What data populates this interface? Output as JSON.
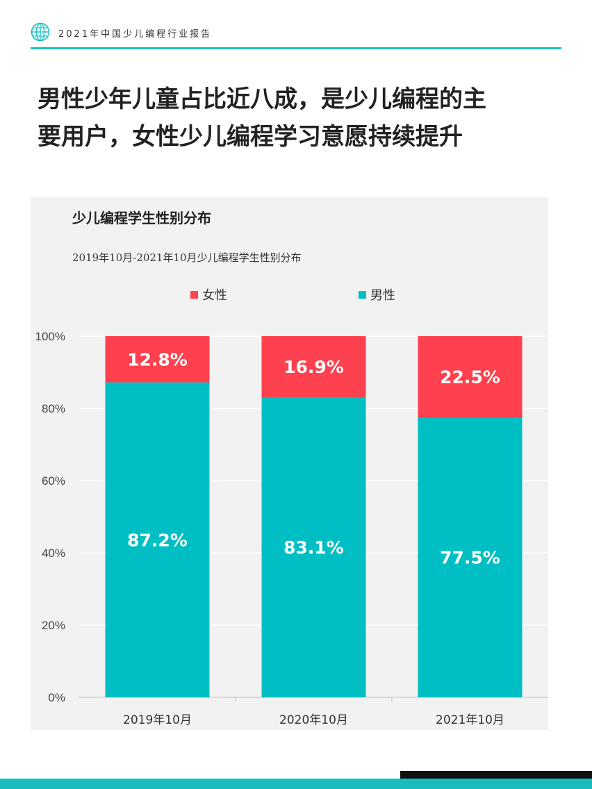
{
  "header": {
    "report_title": "2021年中国少儿编程行业报告",
    "accent_color": "#1bbcbd",
    "logo_icon": "globe-icon"
  },
  "headline": {
    "line1": "男性少年儿童占比近八成，是少儿编程的主",
    "line2": "要用户，女性少儿编程学习意愿持续提升"
  },
  "chart_data": {
    "type": "bar",
    "stacked": true,
    "title": "少儿编程学生性别分布",
    "subtitle": "2019年10月-2021年10月少儿编程学生性别分布",
    "categories": [
      "2019年10月",
      "2020年10月",
      "2021年10月"
    ],
    "series": [
      {
        "name": "男性",
        "color": "#00bfc4",
        "values": [
          87.2,
          83.1,
          77.5
        ],
        "labels": [
          "87.2%",
          "83.1%",
          "77.5%"
        ]
      },
      {
        "name": "女性",
        "color": "#ff404e",
        "values": [
          12.8,
          16.9,
          22.5
        ],
        "labels": [
          "12.8%",
          "16.9%",
          "22.5%"
        ]
      }
    ],
    "ylim": [
      0,
      100
    ],
    "yticks": [
      "0%",
      "20%",
      "40%",
      "60%",
      "80%",
      "100%"
    ],
    "grid": true,
    "legend_position": "top"
  }
}
